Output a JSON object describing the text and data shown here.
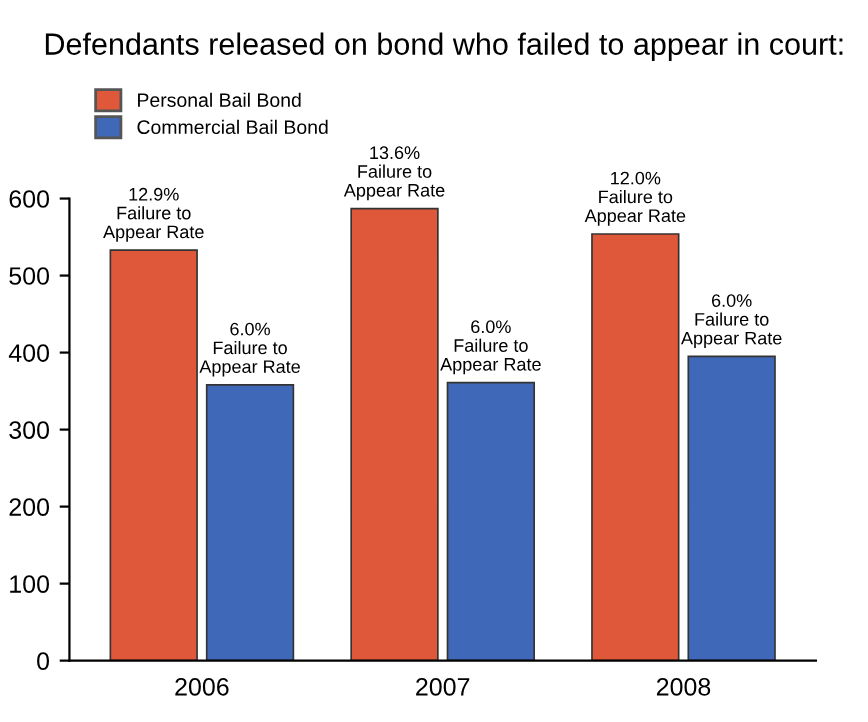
{
  "chart_data": {
    "type": "bar",
    "title": "Defendants released on bond who failed to appear in court:",
    "categories": [
      "2006",
      "2007",
      "2008"
    ],
    "series": [
      {
        "name": "Personal Bail Bond",
        "color": "#e0583a",
        "values": [
          533,
          587,
          554
        ]
      },
      {
        "name": "Commercial Bail Bond",
        "color": "#4068b8",
        "values": [
          358,
          361,
          395
        ]
      }
    ],
    "annotations": [
      {
        "text": "12.9%\nFailure to\nAppear Rate",
        "x": "2006",
        "y": 533
      },
      {
        "text": "6.0%\nFailure to\nAppear Rate",
        "x": "2006",
        "y": 358
      },
      {
        "text": "13.6%\nFailure to\nAppear Rate",
        "x": "2007",
        "y": 587
      },
      {
        "text": "6.0%\nFailure to\nAppear Rate",
        "x": "2007",
        "y": 361
      },
      {
        "text": "12.0%\nFailure to\nAppear Rate",
        "x": "2008",
        "y": 554
      },
      {
        "text": "6.0%\nFailure to\nAppear Rate",
        "x": "2008",
        "y": 395
      }
    ],
    "ylim": [
      0,
      600
    ],
    "yticks": [
      0,
      100,
      200,
      300,
      400,
      500,
      600
    ],
    "grid": false,
    "legend": "top left"
  }
}
